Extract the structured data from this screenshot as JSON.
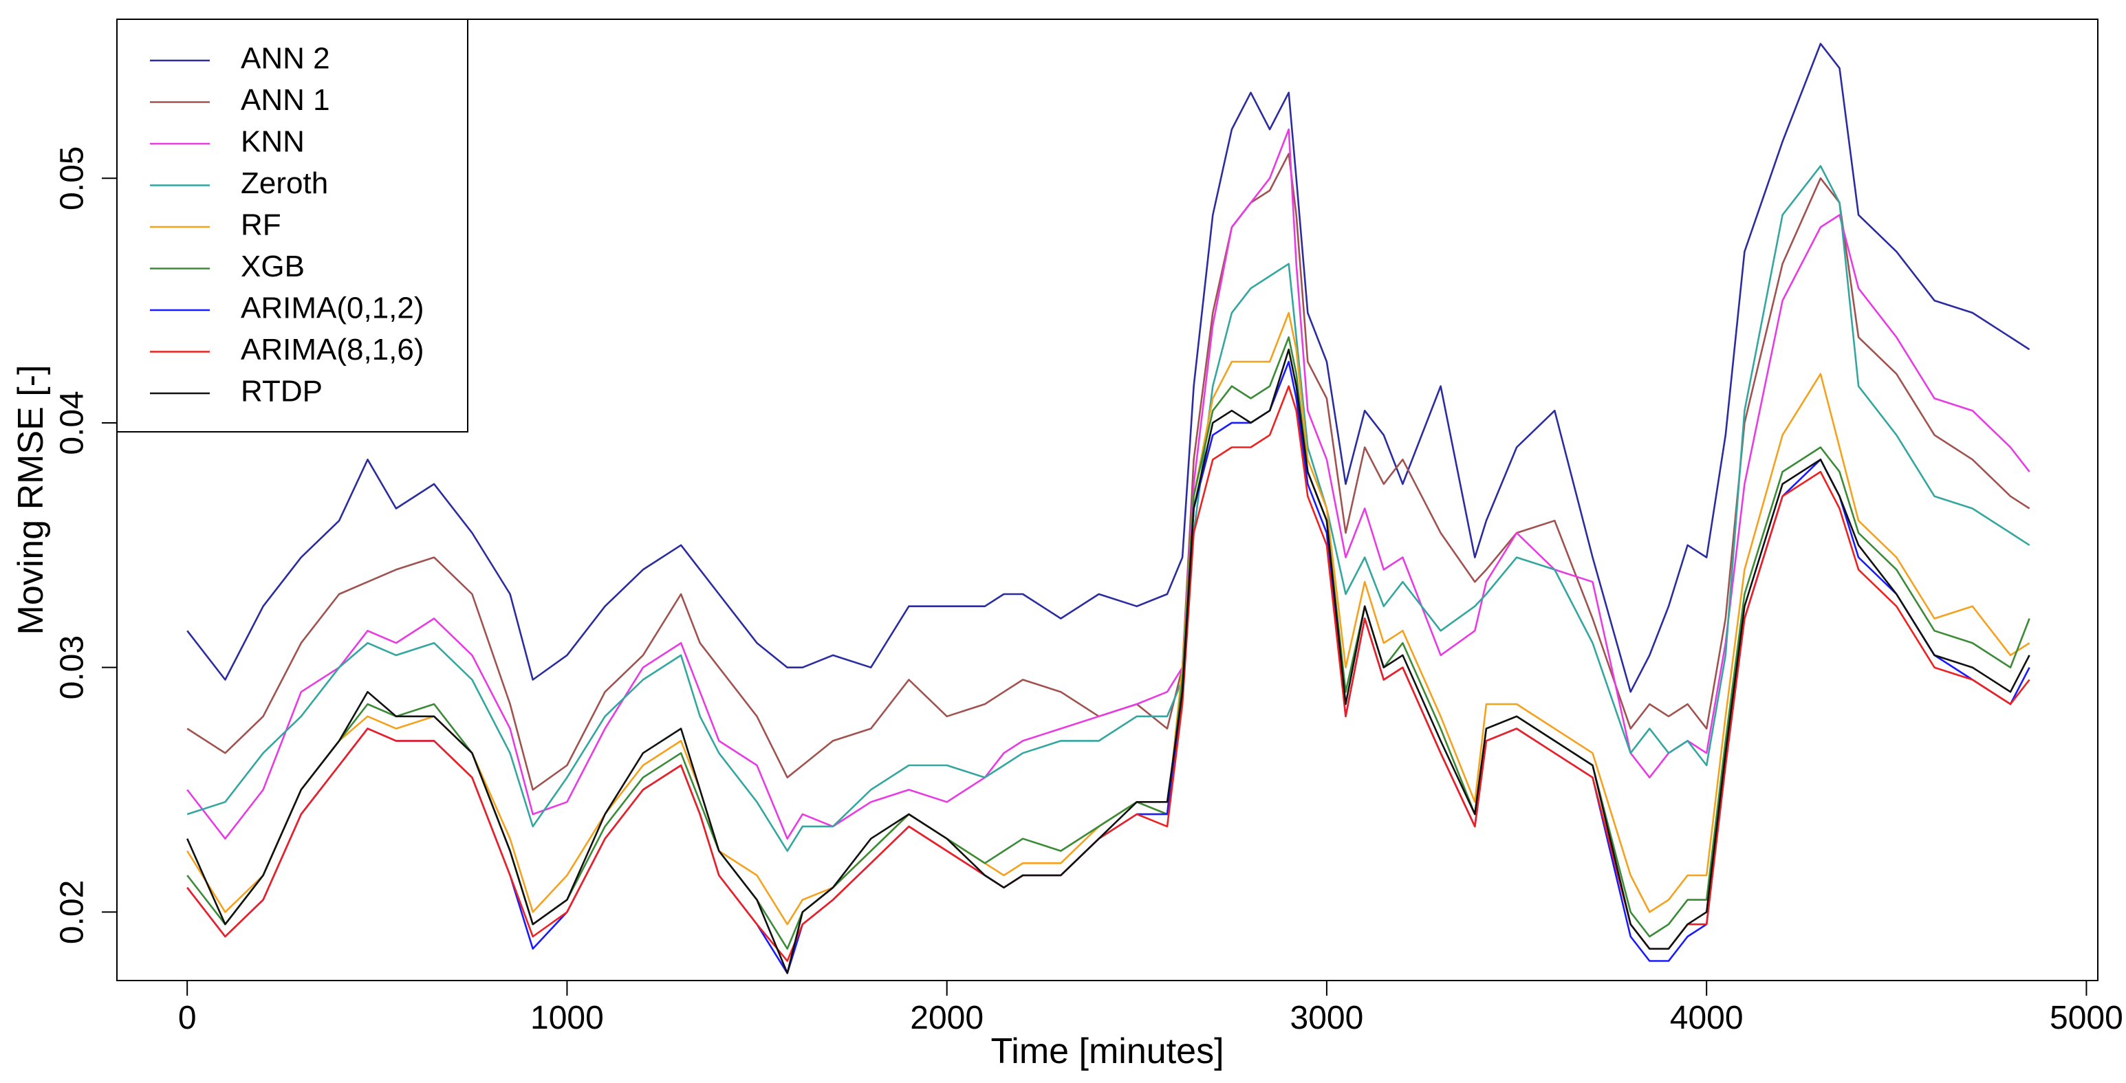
{
  "chart_data": {
    "type": "line",
    "xlabel": "Time [minutes]",
    "ylabel": "Moving RMSE [-]",
    "xlim": [
      -185,
      5030
    ],
    "ylim": [
      0.0172,
      0.0565
    ],
    "xticks": [
      "0",
      "1000",
      "2000",
      "3000",
      "4000",
      "5000"
    ],
    "xtick_values": [
      0,
      1000,
      2000,
      3000,
      4000,
      5000
    ],
    "yticks": [
      "0.02",
      "0.03",
      "0.04",
      "0.05"
    ],
    "ytick_values": [
      0.02,
      0.03,
      0.04,
      0.05
    ],
    "grid": false,
    "legend_position": "top-left",
    "x": [
      0,
      100,
      200,
      300,
      400,
      475,
      550,
      650,
      750,
      850,
      910,
      1000,
      1100,
      1200,
      1300,
      1350,
      1400,
      1500,
      1580,
      1620,
      1700,
      1800,
      1900,
      2000,
      2100,
      2150,
      2200,
      2300,
      2400,
      2500,
      2580,
      2620,
      2650,
      2700,
      2750,
      2800,
      2850,
      2900,
      2920,
      2950,
      3000,
      3050,
      3100,
      3150,
      3200,
      3300,
      3390,
      3420,
      3500,
      3600,
      3700,
      3800,
      3850,
      3900,
      3950,
      4000,
      4050,
      4100,
      4200,
      4300,
      4350,
      4400,
      4500,
      4600,
      4700,
      4800,
      4850
    ],
    "series": [
      {
        "name": "ANN 2",
        "color": "#2a2ca0",
        "values": [
          0.0315,
          0.0295,
          0.0325,
          0.0345,
          0.036,
          0.0385,
          0.0365,
          0.0375,
          0.0355,
          0.033,
          0.0295,
          0.0305,
          0.0325,
          0.034,
          0.035,
          0.034,
          0.033,
          0.031,
          0.03,
          0.03,
          0.0305,
          0.03,
          0.0325,
          0.0325,
          0.0325,
          0.033,
          0.033,
          0.032,
          0.033,
          0.0325,
          0.033,
          0.0345,
          0.0415,
          0.0485,
          0.052,
          0.0535,
          0.052,
          0.0535,
          0.05,
          0.0445,
          0.0425,
          0.0375,
          0.0405,
          0.0395,
          0.0375,
          0.0415,
          0.0345,
          0.036,
          0.039,
          0.0405,
          0.0345,
          0.029,
          0.0305,
          0.0325,
          0.035,
          0.0345,
          0.0395,
          0.047,
          0.0515,
          0.0555,
          0.0545,
          0.0485,
          0.047,
          0.045,
          0.0445,
          0.0435,
          0.043
        ]
      },
      {
        "name": "ANN 1",
        "color": "#a0524f",
        "values": [
          0.0275,
          0.0265,
          0.028,
          0.031,
          0.033,
          0.0335,
          0.034,
          0.0345,
          0.033,
          0.0285,
          0.025,
          0.026,
          0.029,
          0.0305,
          0.033,
          0.031,
          0.03,
          0.028,
          0.0255,
          0.026,
          0.027,
          0.0275,
          0.0295,
          0.028,
          0.0285,
          0.029,
          0.0295,
          0.029,
          0.028,
          0.0285,
          0.0275,
          0.03,
          0.0385,
          0.0445,
          0.048,
          0.049,
          0.0495,
          0.051,
          0.0485,
          0.0425,
          0.041,
          0.0355,
          0.039,
          0.0375,
          0.0385,
          0.0355,
          0.0335,
          0.034,
          0.0355,
          0.036,
          0.032,
          0.0275,
          0.0285,
          0.028,
          0.0285,
          0.0275,
          0.032,
          0.04,
          0.0465,
          0.05,
          0.049,
          0.0435,
          0.042,
          0.0395,
          0.0385,
          0.037,
          0.0365
        ]
      },
      {
        "name": "KNN",
        "color": "#e83be3",
        "values": [
          0.025,
          0.023,
          0.025,
          0.029,
          0.03,
          0.0315,
          0.031,
          0.032,
          0.0305,
          0.0275,
          0.024,
          0.0245,
          0.0275,
          0.03,
          0.031,
          0.029,
          0.027,
          0.026,
          0.023,
          0.024,
          0.0235,
          0.0245,
          0.025,
          0.0245,
          0.0255,
          0.0265,
          0.027,
          0.0275,
          0.028,
          0.0285,
          0.029,
          0.03,
          0.0375,
          0.044,
          0.048,
          0.049,
          0.05,
          0.052,
          0.0465,
          0.0405,
          0.0385,
          0.0345,
          0.0365,
          0.034,
          0.0345,
          0.0305,
          0.0315,
          0.0335,
          0.0355,
          0.034,
          0.0335,
          0.0265,
          0.0255,
          0.0265,
          0.027,
          0.0265,
          0.031,
          0.0375,
          0.045,
          0.048,
          0.0485,
          0.0455,
          0.0435,
          0.041,
          0.0405,
          0.039,
          0.038
        ]
      },
      {
        "name": "Zeroth",
        "color": "#33a6a0",
        "values": [
          0.024,
          0.0245,
          0.0265,
          0.028,
          0.03,
          0.031,
          0.0305,
          0.031,
          0.0295,
          0.0265,
          0.0235,
          0.0255,
          0.028,
          0.0295,
          0.0305,
          0.028,
          0.0265,
          0.0245,
          0.0225,
          0.0235,
          0.0235,
          0.025,
          0.026,
          0.026,
          0.0255,
          0.026,
          0.0265,
          0.027,
          0.027,
          0.028,
          0.028,
          0.0295,
          0.0355,
          0.0415,
          0.0445,
          0.0455,
          0.046,
          0.0465,
          0.0435,
          0.039,
          0.0365,
          0.033,
          0.0345,
          0.0325,
          0.0335,
          0.0315,
          0.0325,
          0.033,
          0.0345,
          0.034,
          0.031,
          0.0265,
          0.0275,
          0.0265,
          0.027,
          0.026,
          0.0305,
          0.0405,
          0.0485,
          0.0505,
          0.049,
          0.0415,
          0.0395,
          0.037,
          0.0365,
          0.0355,
          0.035
        ]
      },
      {
        "name": "RF",
        "color": "#f4a21d",
        "values": [
          0.0225,
          0.02,
          0.0215,
          0.025,
          0.027,
          0.028,
          0.0275,
          0.028,
          0.0265,
          0.023,
          0.02,
          0.0215,
          0.024,
          0.026,
          0.027,
          0.025,
          0.0225,
          0.0215,
          0.0195,
          0.0205,
          0.021,
          0.0225,
          0.024,
          0.023,
          0.022,
          0.0215,
          0.022,
          0.022,
          0.0235,
          0.0245,
          0.024,
          0.03,
          0.037,
          0.041,
          0.0425,
          0.0425,
          0.0425,
          0.0445,
          0.043,
          0.0385,
          0.0365,
          0.03,
          0.0335,
          0.031,
          0.0315,
          0.028,
          0.0245,
          0.0285,
          0.0285,
          0.0275,
          0.0265,
          0.0215,
          0.02,
          0.0205,
          0.0215,
          0.0215,
          0.028,
          0.034,
          0.0395,
          0.042,
          0.039,
          0.036,
          0.0345,
          0.032,
          0.0325,
          0.0305,
          0.031
        ]
      },
      {
        "name": "XGB",
        "color": "#3a8a36",
        "values": [
          0.0215,
          0.0195,
          0.0215,
          0.025,
          0.027,
          0.0285,
          0.028,
          0.0285,
          0.0265,
          0.0225,
          0.0195,
          0.0205,
          0.0235,
          0.0255,
          0.0265,
          0.0245,
          0.0225,
          0.0205,
          0.0185,
          0.02,
          0.021,
          0.0225,
          0.024,
          0.023,
          0.022,
          0.0225,
          0.023,
          0.0225,
          0.0235,
          0.0245,
          0.024,
          0.0295,
          0.037,
          0.0405,
          0.0415,
          0.041,
          0.0415,
          0.0435,
          0.042,
          0.038,
          0.036,
          0.029,
          0.0325,
          0.03,
          0.031,
          0.0275,
          0.024,
          0.0275,
          0.028,
          0.027,
          0.026,
          0.02,
          0.019,
          0.0195,
          0.0205,
          0.0205,
          0.027,
          0.033,
          0.038,
          0.039,
          0.038,
          0.0355,
          0.034,
          0.0315,
          0.031,
          0.03,
          0.032
        ]
      },
      {
        "name": "ARIMA(0,1,2)",
        "color": "#1a1aff",
        "values": [
          0.021,
          0.019,
          0.0205,
          0.024,
          0.026,
          0.0275,
          0.027,
          0.027,
          0.0255,
          0.0215,
          0.0185,
          0.02,
          0.023,
          0.025,
          0.026,
          0.024,
          0.0215,
          0.0195,
          0.0175,
          0.0195,
          0.0205,
          0.022,
          0.0235,
          0.0225,
          0.0215,
          0.021,
          0.0215,
          0.0215,
          0.023,
          0.024,
          0.024,
          0.029,
          0.0365,
          0.0395,
          0.04,
          0.04,
          0.0405,
          0.0425,
          0.041,
          0.0375,
          0.0355,
          0.028,
          0.032,
          0.0295,
          0.03,
          0.0265,
          0.0235,
          0.027,
          0.0275,
          0.0265,
          0.0255,
          0.019,
          0.018,
          0.018,
          0.019,
          0.0195,
          0.026,
          0.032,
          0.037,
          0.0385,
          0.037,
          0.0345,
          0.033,
          0.0305,
          0.0295,
          0.0285,
          0.03
        ]
      },
      {
        "name": "ARIMA(8,1,6)",
        "color": "#ee2020",
        "values": [
          0.021,
          0.019,
          0.0205,
          0.024,
          0.026,
          0.0275,
          0.027,
          0.027,
          0.0255,
          0.0215,
          0.019,
          0.02,
          0.023,
          0.025,
          0.026,
          0.024,
          0.0215,
          0.0195,
          0.018,
          0.0195,
          0.0205,
          0.022,
          0.0235,
          0.0225,
          0.0215,
          0.021,
          0.0215,
          0.0215,
          0.023,
          0.024,
          0.0235,
          0.0285,
          0.0355,
          0.0385,
          0.039,
          0.039,
          0.0395,
          0.0415,
          0.0405,
          0.037,
          0.035,
          0.028,
          0.032,
          0.0295,
          0.03,
          0.0265,
          0.0235,
          0.027,
          0.0275,
          0.0265,
          0.0255,
          0.0195,
          0.0185,
          0.0185,
          0.0195,
          0.0195,
          0.026,
          0.032,
          0.037,
          0.038,
          0.0365,
          0.034,
          0.0325,
          0.03,
          0.0295,
          0.0285,
          0.0295
        ]
      },
      {
        "name": "RTDP",
        "color": "#111111",
        "values": [
          0.023,
          0.0195,
          0.0215,
          0.025,
          0.027,
          0.029,
          0.028,
          0.028,
          0.0265,
          0.0225,
          0.0195,
          0.0205,
          0.024,
          0.0265,
          0.0275,
          0.025,
          0.0225,
          0.0205,
          0.0175,
          0.02,
          0.021,
          0.023,
          0.024,
          0.023,
          0.0215,
          0.021,
          0.0215,
          0.0215,
          0.023,
          0.0245,
          0.0245,
          0.029,
          0.0365,
          0.04,
          0.0405,
          0.04,
          0.0405,
          0.043,
          0.0415,
          0.038,
          0.036,
          0.0285,
          0.0325,
          0.03,
          0.0305,
          0.027,
          0.024,
          0.0275,
          0.028,
          0.027,
          0.026,
          0.0195,
          0.0185,
          0.0185,
          0.0195,
          0.02,
          0.0265,
          0.0325,
          0.0375,
          0.0385,
          0.037,
          0.035,
          0.033,
          0.0305,
          0.03,
          0.029,
          0.0305
        ]
      }
    ]
  }
}
